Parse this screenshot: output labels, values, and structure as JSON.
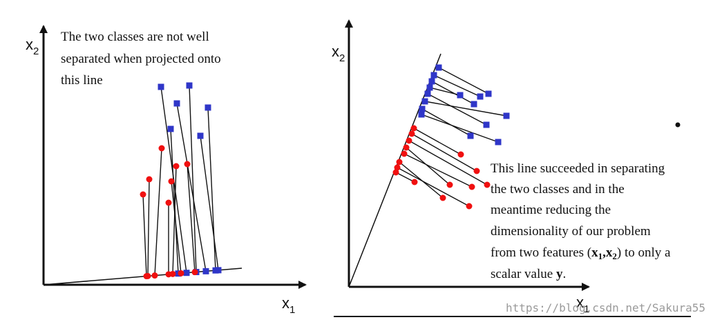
{
  "left_panel": {
    "caption_lines": [
      "The two classes are not well",
      "separated when projected onto",
      "this line"
    ],
    "axis_y_label": "x",
    "axis_y_sub": "2",
    "axis_x_label": "x",
    "axis_x_sub": "1"
  },
  "right_panel": {
    "caption_lines": [
      "This line succeeded in separating",
      "the two classes and in the",
      "meantime reducing the",
      "dimensionality of our problem"
    ],
    "caption_line5_a": "from two features (",
    "caption_line5_x1": "x",
    "caption_line5_x1_sub": "1",
    "caption_line5_comma": ",",
    "caption_line5_x2": "x",
    "caption_line5_x2_sub": "2",
    "caption_line5_b": ") to only a",
    "caption_line6_a": "scalar value ",
    "caption_line6_y": "y",
    "caption_line6_b": ".",
    "axis_y_label": "x",
    "axis_y_sub": "2",
    "axis_x_label": "x",
    "axis_x_sub": "1"
  },
  "watermark": "https://blog.csdn.net/Sakura55",
  "colors": {
    "class_square": "#2f36c8",
    "class_circle": "#f01010",
    "ink": "#111111"
  }
}
